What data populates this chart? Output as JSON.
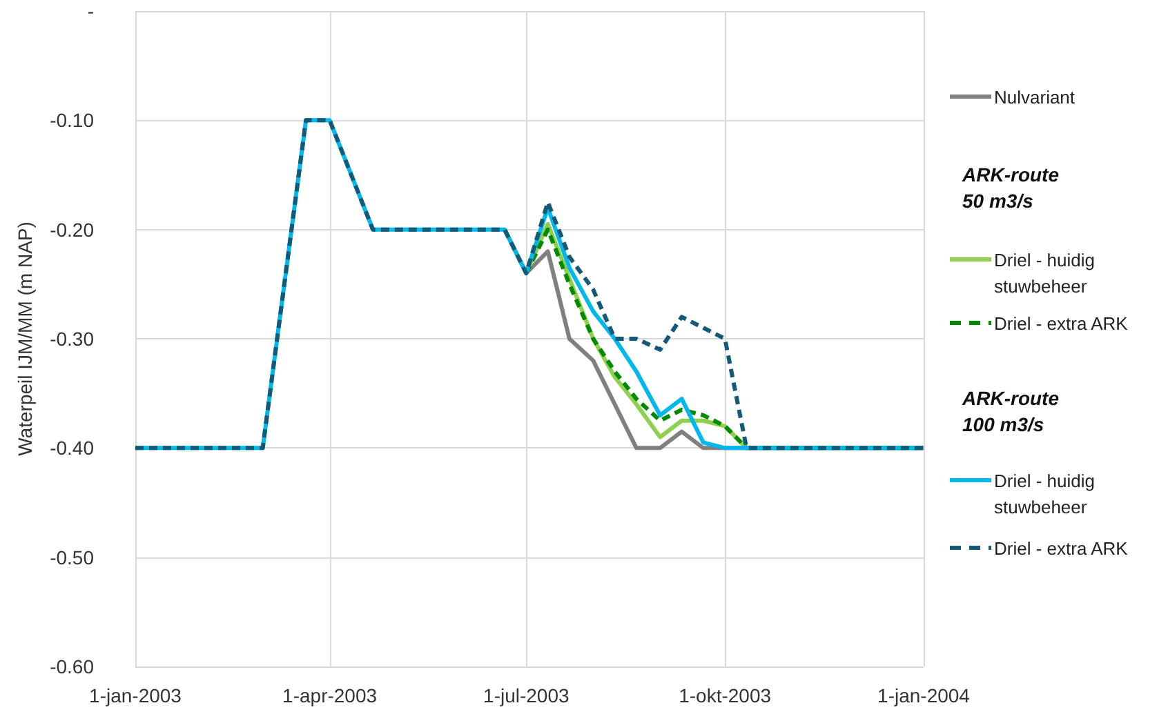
{
  "chart_data": {
    "type": "line",
    "ylabel": "Waterpeil IJM/MM (m NAP)",
    "x": [
      "2003-01-01",
      "2003-03-01",
      "2003-03-21",
      "2003-04-01",
      "2003-04-21",
      "2003-06-21",
      "2003-07-01",
      "2003-07-11",
      "2003-07-21",
      "2003-08-01",
      "2003-08-11",
      "2003-08-21",
      "2003-09-01",
      "2003-09-11",
      "2003-09-21",
      "2003-10-01",
      "2003-10-11",
      "2004-01-01"
    ],
    "series": [
      {
        "name": "Nulvariant",
        "color": "#808080",
        "line_style": "solid",
        "values": [
          null,
          null,
          null,
          null,
          null,
          -0.2,
          -0.24,
          -0.22,
          -0.3,
          -0.32,
          -0.36,
          -0.4,
          -0.4,
          -0.385,
          -0.4,
          -0.4,
          -0.4,
          -0.4
        ]
      },
      {
        "name": "Driel - huidig stuwbeheer",
        "color": "#8fd14f",
        "line_style": "solid",
        "values": [
          null,
          null,
          null,
          null,
          null,
          -0.2,
          -0.24,
          -0.195,
          -0.245,
          -0.3,
          -0.335,
          -0.36,
          -0.39,
          -0.375,
          -0.375,
          -0.38,
          -0.4,
          -0.4
        ]
      },
      {
        "name": "Driel - extra ARK",
        "color": "#008a00",
        "line_style": "dashed",
        "values": [
          null,
          null,
          null,
          null,
          null,
          null,
          -0.24,
          -0.2,
          -0.25,
          -0.3,
          -0.33,
          -0.355,
          -0.375,
          -0.365,
          -0.37,
          -0.38,
          -0.4,
          -0.4
        ]
      },
      {
        "name": "Driel - huidig stuwbeheer",
        "color": "#00b8eb",
        "line_style": "solid",
        "values": [
          -0.4,
          -0.4,
          -0.1,
          -0.1,
          -0.2,
          -0.2,
          -0.24,
          -0.18,
          -0.235,
          -0.275,
          -0.3,
          -0.33,
          -0.37,
          -0.355,
          -0.395,
          -0.4,
          -0.4,
          -0.4
        ]
      },
      {
        "name": "Driel - extra ARK",
        "color": "#135a78",
        "line_style": "dashed",
        "values": [
          -0.4,
          -0.4,
          -0.1,
          -0.1,
          -0.2,
          -0.2,
          -0.24,
          -0.175,
          -0.225,
          -0.255,
          -0.3,
          -0.3,
          -0.31,
          -0.28,
          -0.29,
          -0.3,
          -0.4,
          -0.4
        ]
      }
    ],
    "annotations": [
      "ARK-route 50 m3/s",
      "ARK-route 100 m3/s"
    ],
    "xlim": [
      "2003-01-01",
      "2004-01-01"
    ],
    "xticks": [
      {
        "value": "2003-01-01",
        "label": "1-jan-2003"
      },
      {
        "value": "2003-04-01",
        "label": "1-apr-2003"
      },
      {
        "value": "2003-07-01",
        "label": "1-jul-2003"
      },
      {
        "value": "2003-10-01",
        "label": "1-okt-2003"
      },
      {
        "value": "2004-01-01",
        "label": "1-jan-2004"
      }
    ],
    "ylim": [
      -0.6,
      0
    ],
    "yticks": [
      {
        "value": -0.6,
        "label": "-0.60"
      },
      {
        "value": -0.5,
        "label": "-0.50"
      },
      {
        "value": -0.4,
        "label": "-0.40"
      },
      {
        "value": -0.3,
        "label": "-0.30"
      },
      {
        "value": -0.2,
        "label": "-0.20"
      },
      {
        "value": -0.1,
        "label": "-0.10"
      },
      {
        "value": 0,
        "label": "-"
      }
    ],
    "grid": true,
    "legend": "right",
    "marker": "none"
  }
}
